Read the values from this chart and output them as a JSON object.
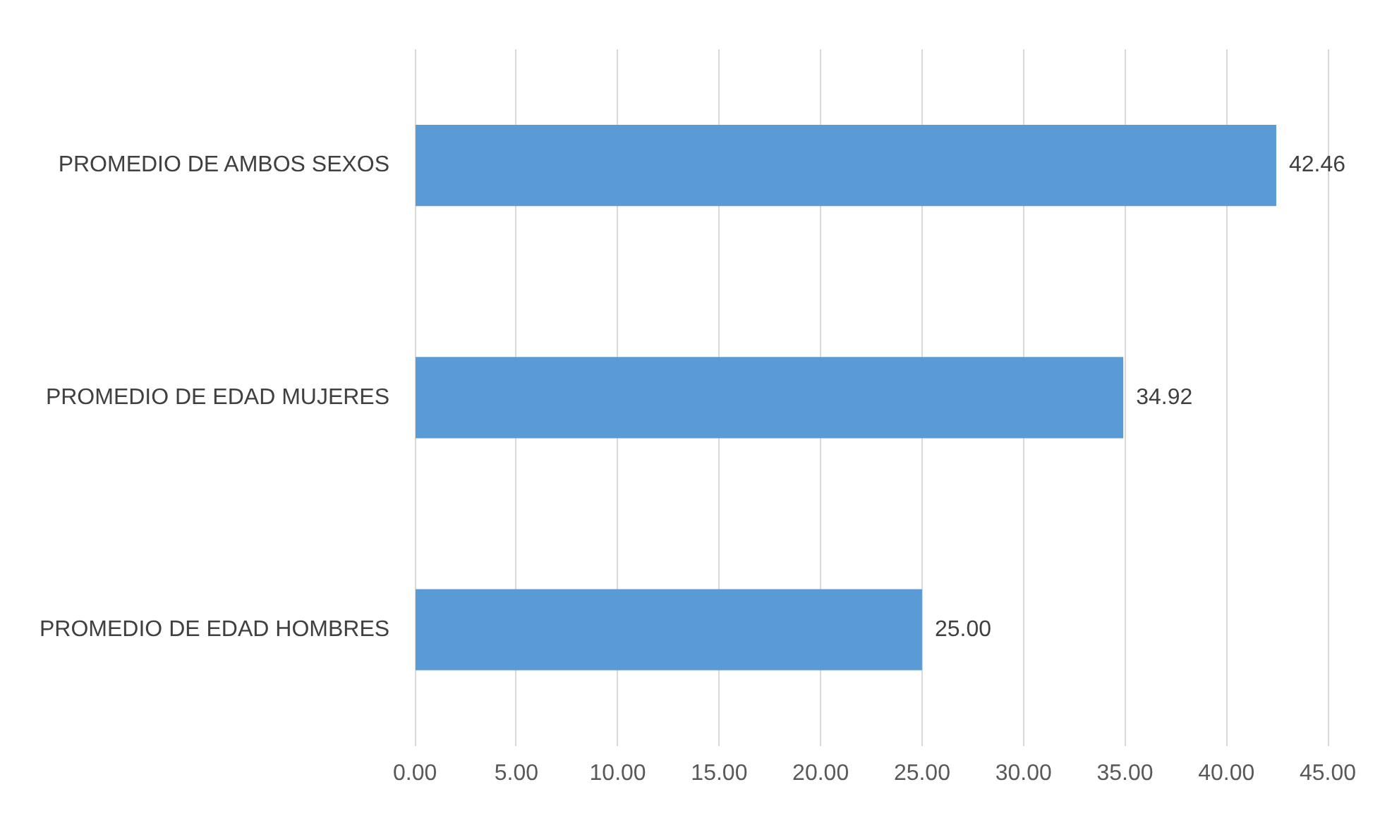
{
  "chart_data": {
    "type": "bar",
    "orientation": "horizontal",
    "categories": [
      "PROMEDIO DE AMBOS SEXOS",
      "PROMEDIO DE EDAD MUJERES",
      "PROMEDIO DE EDAD HOMBRES"
    ],
    "values": [
      42.46,
      34.92,
      25
    ],
    "value_labels": [
      "42.46",
      "34.92",
      "25.00"
    ],
    "color": "#5b9bd5",
    "xlim": [
      0,
      45
    ],
    "xticks": [
      {
        "value": 0,
        "label": "0.00"
      },
      {
        "value": 5,
        "label": "5.00"
      },
      {
        "value": 10,
        "label": "10.00"
      },
      {
        "value": 15,
        "label": "15.00"
      },
      {
        "value": 20,
        "label": "20.00"
      },
      {
        "value": 25,
        "label": "25.00"
      },
      {
        "value": 30,
        "label": "30.00"
      },
      {
        "value": 35,
        "label": "35.00"
      },
      {
        "value": 40,
        "label": "40.00"
      },
      {
        "value": 45,
        "label": "45.00"
      }
    ],
    "grid": "x"
  }
}
